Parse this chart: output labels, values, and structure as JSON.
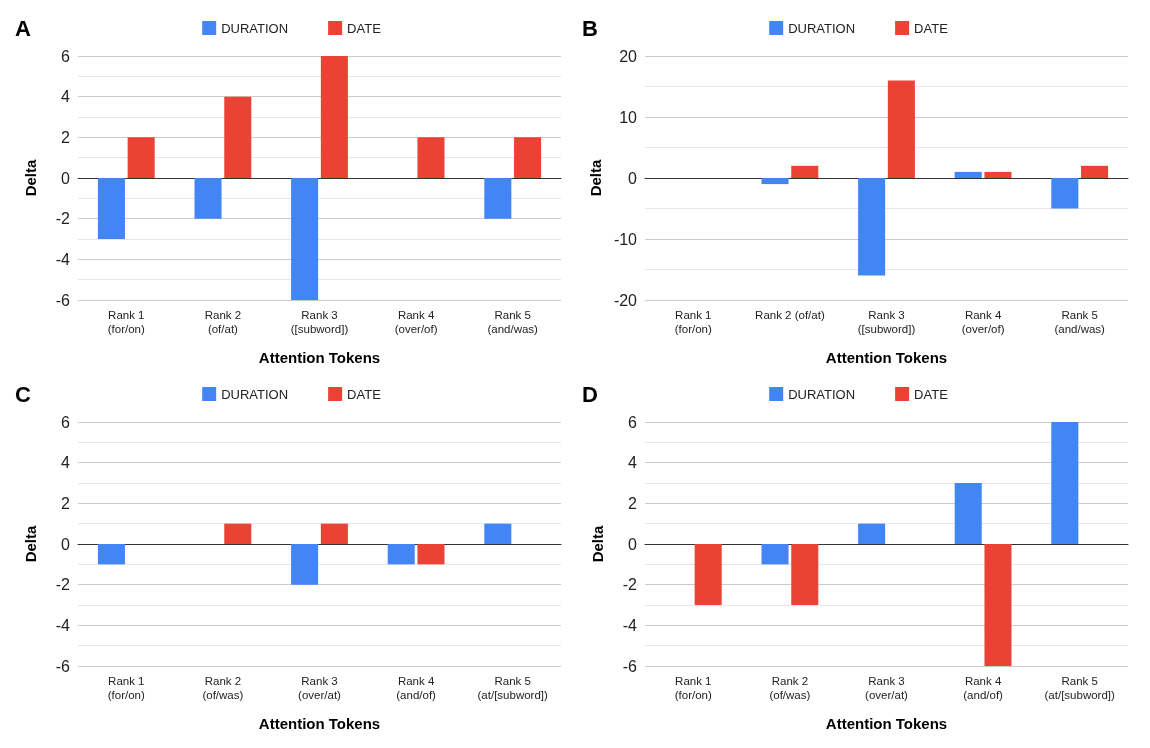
{
  "chart_data": [
    {
      "type": "bar",
      "title": "A",
      "xlabel": "Attention Tokens",
      "ylabel": "Delta",
      "categories": [
        "Rank 1\n(for/on)",
        "Rank 2\n(of/at)",
        "Rank 3\n([subword])",
        "Rank 4\n(over/of)",
        "Rank 5\n(and/was)"
      ],
      "series": [
        {
          "name": "DURATION",
          "color": "#4285f4",
          "values": [
            -3,
            -2,
            -6,
            0,
            -2
          ]
        },
        {
          "name": "DATE",
          "color": "#ea4335",
          "values": [
            2,
            4,
            6,
            2,
            2
          ]
        }
      ],
      "ylim": [
        -6,
        6
      ],
      "yticks": [
        -6,
        -4,
        -2,
        0,
        2,
        4,
        6
      ],
      "grid": "y",
      "legend": "top"
    },
    {
      "type": "bar",
      "title": "B",
      "xlabel": "Attention Tokens",
      "ylabel": "Delta",
      "categories": [
        "Rank 1\n(for/on)",
        "Rank 2 (of/at)",
        "Rank 3\n([subword])",
        "Rank 4\n(over/of)",
        "Rank 5\n(and/was)"
      ],
      "series": [
        {
          "name": "DURATION",
          "color": "#4285f4",
          "values": [
            0,
            -1,
            -16,
            1,
            -5
          ]
        },
        {
          "name": "DATE",
          "color": "#ea4335",
          "values": [
            0,
            2,
            16,
            1,
            2
          ]
        }
      ],
      "ylim": [
        -20,
        20
      ],
      "yticks": [
        -20,
        -10,
        0,
        10,
        20
      ],
      "grid": "y",
      "legend": "top"
    },
    {
      "type": "bar",
      "title": "C",
      "xlabel": "Attention Tokens",
      "ylabel": "Delta",
      "categories": [
        "Rank 1\n(for/on)",
        "Rank 2\n(of/was)",
        "Rank 3\n(over/at)",
        "Rank 4\n(and/of)",
        "Rank 5\n(at/[subword])"
      ],
      "series": [
        {
          "name": "DURATION",
          "color": "#4285f4",
          "values": [
            -1,
            0,
            -2,
            -1,
            1
          ]
        },
        {
          "name": "DATE",
          "color": "#ea4335",
          "values": [
            0,
            1,
            1,
            -1,
            0
          ]
        }
      ],
      "ylim": [
        -6,
        6
      ],
      "yticks": [
        -6,
        -4,
        -2,
        0,
        2,
        4,
        6
      ],
      "grid": "y",
      "legend": "top"
    },
    {
      "type": "bar",
      "title": "D",
      "xlabel": "Attention Tokens",
      "ylabel": "Delta",
      "categories": [
        "Rank 1\n(for/on)",
        "Rank 2\n(of/was)",
        "Rank 3\n(over/at)",
        "Rank 4\n(and/of)",
        "Rank 5\n(at/[subword])"
      ],
      "series": [
        {
          "name": "DURATION",
          "color": "#4285f4",
          "values": [
            0,
            -1,
            1,
            3,
            6
          ]
        },
        {
          "name": "DATE",
          "color": "#ea4335",
          "values": [
            -3,
            -3,
            0,
            -6,
            0
          ]
        }
      ],
      "ylim": [
        -6,
        6
      ],
      "yticks": [
        -6,
        -4,
        -2,
        0,
        2,
        4,
        6
      ],
      "grid": "y",
      "legend": "top"
    }
  ]
}
